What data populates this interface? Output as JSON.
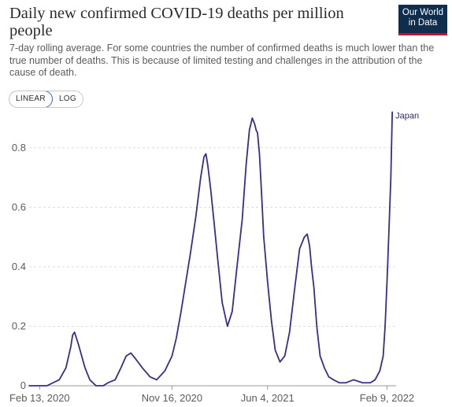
{
  "header": {
    "title": "Daily new confirmed COVID-19 deaths per million people",
    "subtitle": "7-day rolling average. For some countries the number of confirmed deaths is much lower than the true number of deaths. This is because of limited testing and challenges in the attribution of the cause of death."
  },
  "logo": {
    "line1": "Our World",
    "line2": "in Data"
  },
  "scale_toggle": {
    "linear_label": "LINEAR",
    "log_label": "LOG",
    "selected": "LINEAR"
  },
  "colors": {
    "series": "#3d2a8a",
    "grid": "#dddddd",
    "logo_bg": "#0f2d4d",
    "logo_accent": "#c8102e"
  },
  "chart_data": {
    "type": "line",
    "title": "Daily new confirmed COVID-19 deaths per million people",
    "xlabel": "",
    "ylabel": "",
    "ylim": [
      0,
      0.9
    ],
    "yticks": [
      0,
      0.2,
      0.4,
      0.6,
      0.8
    ],
    "ytick_labels": [
      "0",
      "0.2",
      "0.4",
      "0.6",
      "0.8"
    ],
    "xlim": [
      "2020-01-22",
      "2022-02-28"
    ],
    "xticks": [
      "2020-02-13",
      "2020-11-16",
      "2021-06-04",
      "2022-02-09"
    ],
    "xtick_labels": [
      "Feb 13, 2020",
      "Nov 16, 2020",
      "Jun 4, 2021",
      "Feb 9, 2022"
    ],
    "grid": "horizontal dashed",
    "series": [
      {
        "name": "Japan",
        "x": [
          "2020-01-22",
          "2020-02-28",
          "2020-03-25",
          "2020-04-08",
          "2020-04-18",
          "2020-04-22",
          "2020-04-26",
          "2020-05-04",
          "2020-05-18",
          "2020-05-28",
          "2020-06-10",
          "2020-06-25",
          "2020-07-05",
          "2020-07-20",
          "2020-08-01",
          "2020-08-12",
          "2020-08-22",
          "2020-09-01",
          "2020-09-15",
          "2020-10-01",
          "2020-10-15",
          "2020-11-01",
          "2020-11-16",
          "2020-11-25",
          "2020-12-05",
          "2020-12-15",
          "2020-12-25",
          "2021-01-05",
          "2021-01-15",
          "2021-01-22",
          "2021-01-26",
          "2021-01-30",
          "2021-02-05",
          "2021-02-12",
          "2021-02-20",
          "2021-03-01",
          "2021-03-12",
          "2021-03-22",
          "2021-04-01",
          "2021-04-12",
          "2021-04-20",
          "2021-04-27",
          "2021-05-03",
          "2021-05-08",
          "2021-05-11",
          "2021-05-14",
          "2021-05-18",
          "2021-05-22",
          "2021-05-27",
          "2021-06-04",
          "2021-06-12",
          "2021-06-20",
          "2021-06-30",
          "2021-07-10",
          "2021-07-20",
          "2021-07-31",
          "2021-08-10",
          "2021-08-20",
          "2021-08-26",
          "2021-08-31",
          "2021-09-04",
          "2021-09-09",
          "2021-09-15",
          "2021-09-22",
          "2021-10-01",
          "2021-10-10",
          "2021-10-20",
          "2021-11-01",
          "2021-11-15",
          "2021-12-01",
          "2021-12-20",
          "2022-01-05",
          "2022-01-15",
          "2022-01-25",
          "2022-02-01",
          "2022-02-05",
          "2022-02-09",
          "2022-02-13",
          "2022-02-17",
          "2022-02-20"
        ],
        "y": [
          0,
          0.0,
          0.02,
          0.06,
          0.13,
          0.17,
          0.18,
          0.14,
          0.06,
          0.02,
          0.0,
          0.0,
          0.01,
          0.02,
          0.06,
          0.1,
          0.11,
          0.09,
          0.06,
          0.03,
          0.02,
          0.05,
          0.1,
          0.16,
          0.25,
          0.35,
          0.45,
          0.57,
          0.7,
          0.77,
          0.78,
          0.74,
          0.66,
          0.55,
          0.42,
          0.28,
          0.2,
          0.25,
          0.4,
          0.56,
          0.74,
          0.86,
          0.9,
          0.88,
          0.86,
          0.85,
          0.78,
          0.66,
          0.5,
          0.35,
          0.22,
          0.12,
          0.08,
          0.1,
          0.18,
          0.33,
          0.46,
          0.5,
          0.51,
          0.47,
          0.4,
          0.33,
          0.2,
          0.1,
          0.06,
          0.03,
          0.02,
          0.01,
          0.01,
          0.02,
          0.01,
          0.01,
          0.02,
          0.05,
          0.1,
          0.2,
          0.35,
          0.52,
          0.7,
          0.92
        ]
      }
    ]
  }
}
